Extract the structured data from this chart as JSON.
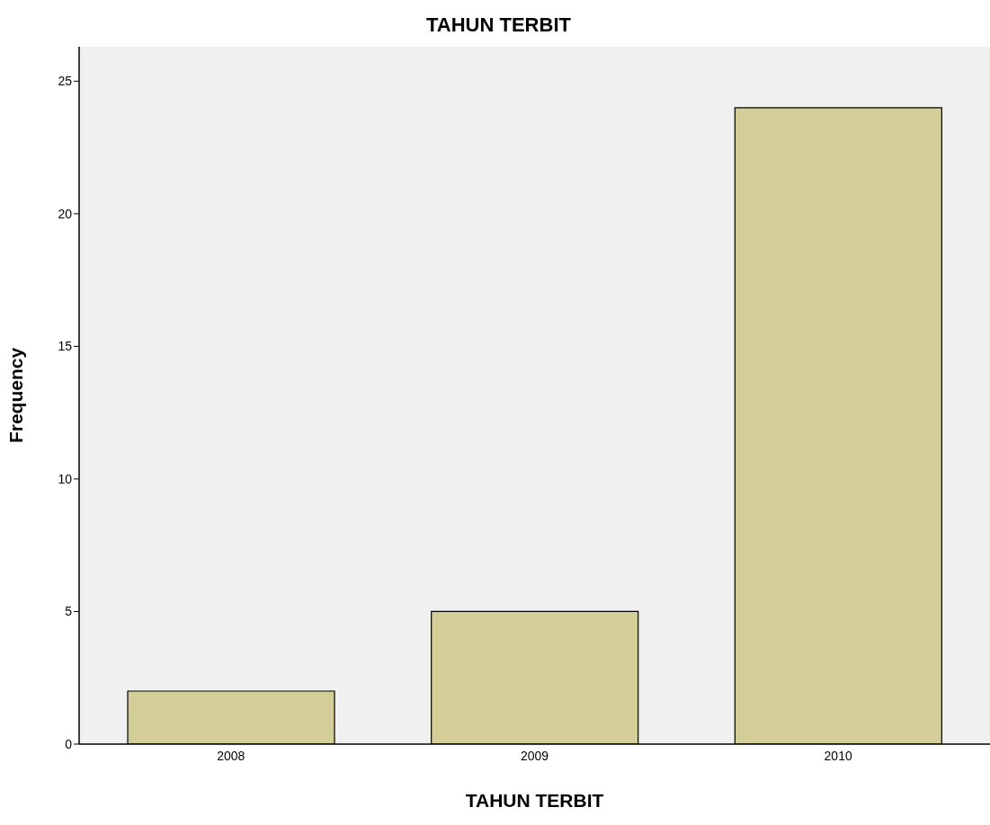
{
  "chart_data": {
    "type": "bar",
    "title": "TAHUN TERBIT",
    "xlabel": "TAHUN TERBIT",
    "ylabel": "Frequency",
    "categories": [
      "2008",
      "2009",
      "2010"
    ],
    "values": [
      2,
      5,
      24
    ],
    "color": "#d3ce97",
    "ylim": [
      0,
      26.3
    ],
    "yticks": [
      0,
      5,
      10,
      15,
      20,
      25
    ],
    "legend": false
  }
}
